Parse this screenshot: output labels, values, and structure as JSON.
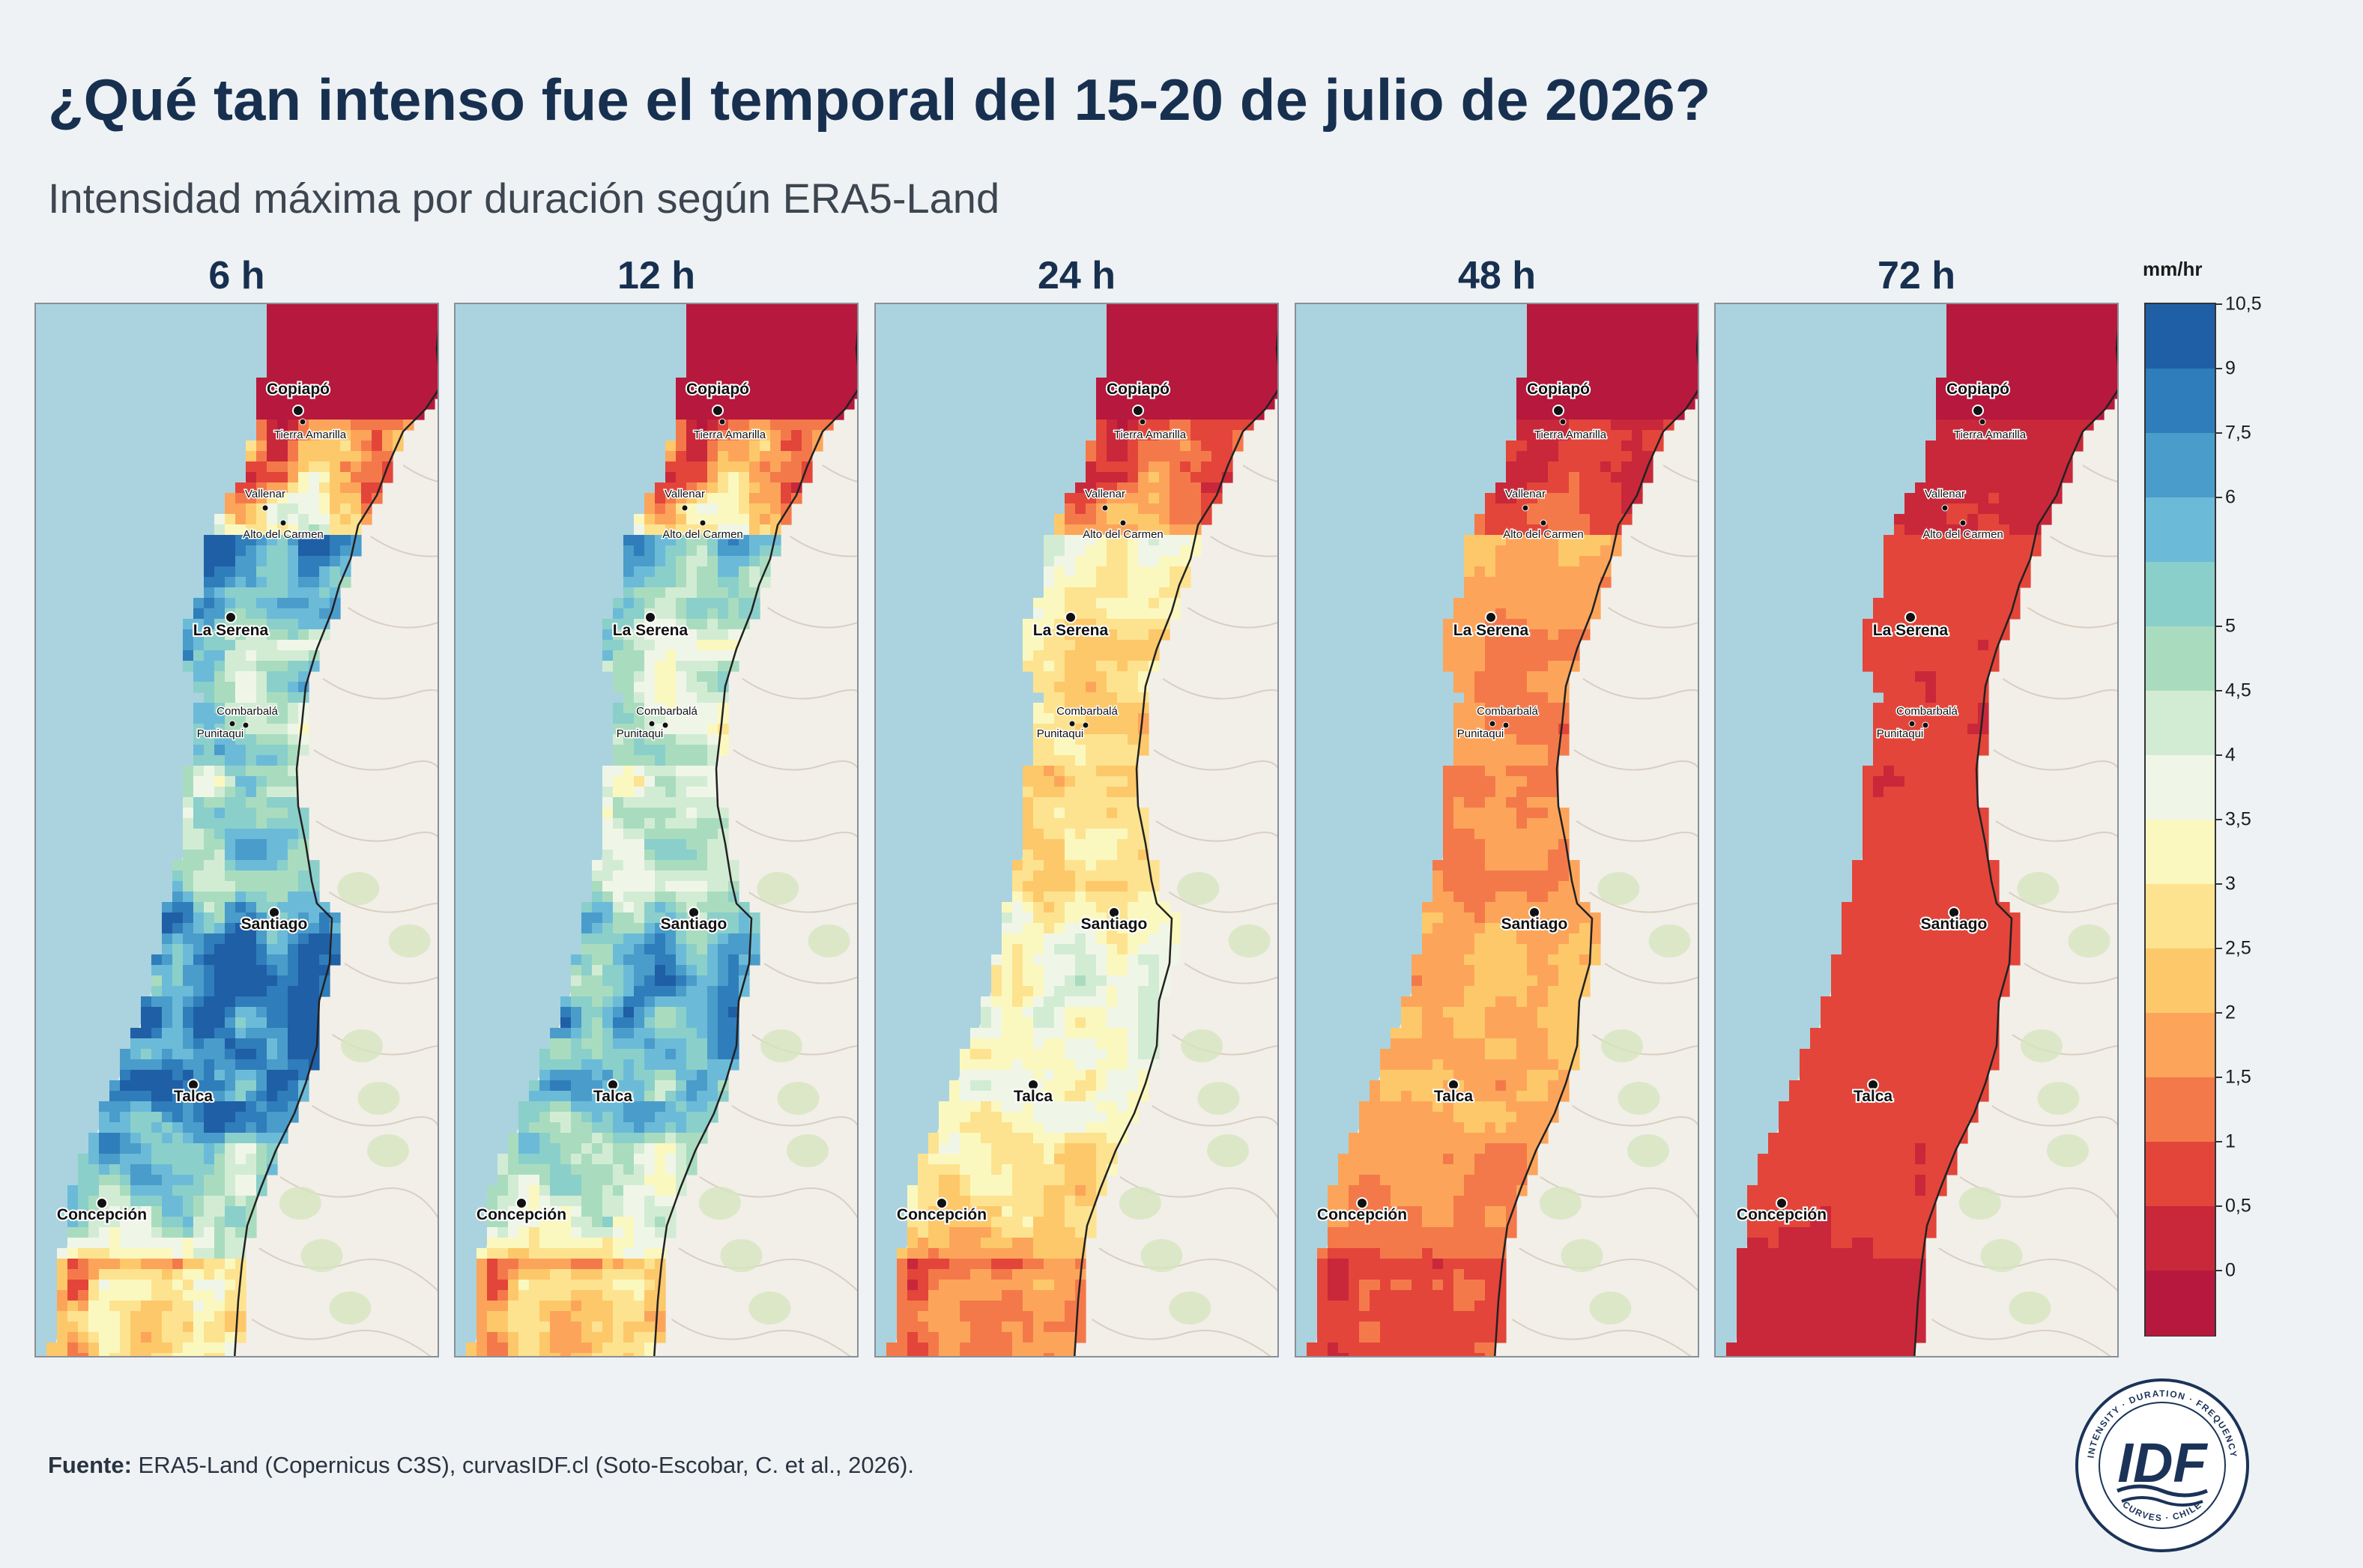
{
  "title": "¿Qué tan intenso fue el temporal del 15-20 de julio de 2026?",
  "subtitle": "Intensidad máxima por duración según ERA5-Land",
  "panels": [
    {
      "label": "6 h",
      "palette_bias": 0.0
    },
    {
      "label": "12 h",
      "palette_bias": 0.1
    },
    {
      "label": "24 h",
      "palette_bias": 0.32
    },
    {
      "label": "48 h",
      "palette_bias": 0.48
    },
    {
      "label": "72 h",
      "palette_bias": 0.6
    }
  ],
  "cities": [
    {
      "name": "Copiapó",
      "major": true
    },
    {
      "name": "Tierra Amarilla",
      "major": false
    },
    {
      "name": "Vallenar",
      "major": false
    },
    {
      "name": "Alto del Carmen",
      "major": false
    },
    {
      "name": "La Serena",
      "major": true
    },
    {
      "name": "Combarbalá",
      "major": false
    },
    {
      "name": "Punitaqui",
      "major": false
    },
    {
      "name": "Santiago",
      "major": true
    },
    {
      "name": "Talca",
      "major": true
    },
    {
      "name": "Concepción",
      "major": true
    }
  ],
  "legend": {
    "unit": "mm/hr",
    "ticks": [
      "10,5",
      "9",
      "7,5",
      "6",
      "5",
      "4,5",
      "4",
      "3,5",
      "3",
      "2,5",
      "2",
      "1,5",
      "1",
      "0,5",
      "0"
    ],
    "colors": [
      "#1f5fa5",
      "#2f7dba",
      "#4a9ccb",
      "#6bbbd8",
      "#8acfca",
      "#a9dcbf",
      "#d2ecd4",
      "#eff6e8",
      "#fbf8bf",
      "#fde38f",
      "#fdc86a",
      "#fca55a",
      "#f4794a",
      "#e3453a",
      "#c8283a",
      "#b7183d"
    ]
  },
  "source": {
    "label": "Fuente:",
    "text": " ERA5-Land (Copernicus C3S), curvasIDF.cl (Soto-Escobar, C. et al., 2026)."
  },
  "logo": {
    "main": "IDF",
    "ring_top": "INTENSITY · DURATION · FREQUENCY",
    "ring_bottom": "CURVES · CHILE"
  }
}
